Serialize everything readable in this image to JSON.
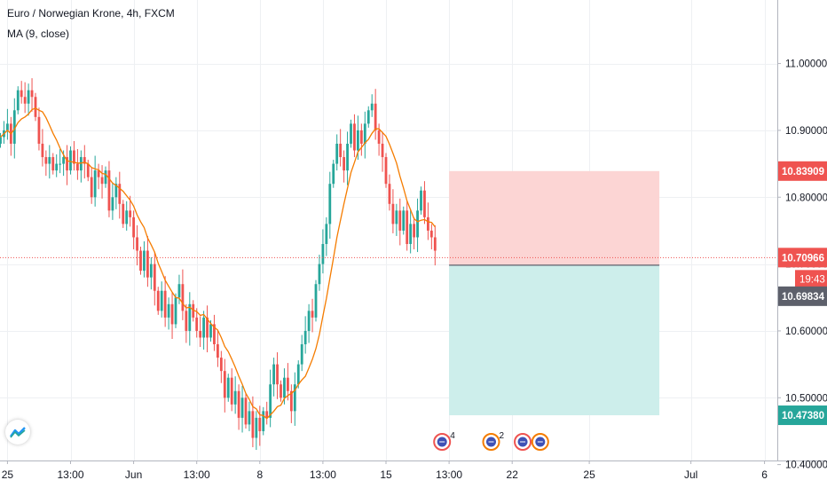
{
  "header": {
    "symbol_line": "Euro / Norwegian Krone, 4h, FXCM",
    "indicator_line": "MA (9, close)"
  },
  "colors": {
    "up": "#26a69a",
    "down": "#ef5350",
    "ma": "#f57c00",
    "stop_zone": "#fcd5d4",
    "target_zone": "#cdeeeb",
    "grid": "#eef0f3",
    "axis_text": "#131722"
  },
  "chart_data": {
    "type": "candlestick",
    "title": "Euro / Norwegian Krone, 4h, FXCM",
    "indicator": "MA (9, close)",
    "ylim": [
      10.365,
      11.095
    ],
    "y_ticks": [
      "11.00000",
      "10.90000",
      "10.80000",
      "10.70000",
      "10.60000",
      "10.50000",
      "10.40000"
    ],
    "x_ticks": [
      {
        "label": "25",
        "bar": 2
      },
      {
        "label": "13:00",
        "bar": 20
      },
      {
        "label": "Jun",
        "bar": 38
      },
      {
        "label": "13:00",
        "bar": 56
      },
      {
        "label": "8",
        "bar": 74
      },
      {
        "label": "13:00",
        "bar": 92
      },
      {
        "label": "15",
        "bar": 110
      },
      {
        "label": "13:00",
        "bar": 128
      },
      {
        "label": "22",
        "bar": 146
      },
      {
        "label": "25",
        "bar": 168
      },
      {
        "label": "Jul",
        "bar": 197
      },
      {
        "label": "6",
        "bar": 218
      }
    ],
    "closes": [
      10.89,
      10.9,
      10.91,
      10.88,
      10.93,
      10.96,
      10.95,
      10.94,
      10.96,
      10.95,
      10.92,
      10.88,
      10.86,
      10.85,
      10.86,
      10.84,
      10.85,
      10.85,
      10.86,
      10.84,
      10.87,
      10.85,
      10.84,
      10.86,
      10.85,
      10.83,
      10.8,
      10.84,
      10.83,
      10.82,
      10.84,
      10.78,
      10.8,
      10.82,
      10.79,
      10.76,
      10.78,
      10.77,
      10.74,
      10.72,
      10.69,
      10.72,
      10.68,
      10.7,
      10.66,
      10.63,
      10.66,
      10.62,
      10.64,
      10.61,
      10.65,
      10.67,
      10.63,
      10.6,
      10.64,
      10.62,
      10.6,
      10.59,
      10.62,
      10.59,
      10.61,
      10.58,
      10.56,
      10.54,
      10.5,
      10.53,
      10.49,
      10.51,
      10.47,
      10.5,
      10.46,
      10.48,
      10.44,
      10.47,
      10.45,
      10.48,
      10.47,
      10.52,
      10.55,
      10.52,
      10.5,
      10.53,
      10.51,
      10.48,
      10.52,
      10.55,
      10.58,
      10.6,
      10.63,
      10.62,
      10.67,
      10.7,
      10.73,
      10.76,
      10.82,
      10.85,
      10.88,
      10.86,
      10.84,
      10.88,
      10.91,
      10.87,
      10.9,
      10.88,
      10.91,
      10.93,
      10.94,
      10.9,
      10.88,
      10.86,
      10.82,
      10.79,
      10.76,
      10.78,
      10.75,
      10.78,
      10.73,
      10.76,
      10.74,
      10.78,
      10.81,
      10.77,
      10.75,
      10.74,
      10.72
    ],
    "last_price": "10.70966",
    "countdown": "19:43",
    "position": {
      "stop_price": "10.83909",
      "entry_price": "10.69834",
      "target_price": "10.47380",
      "stop": 10.83909,
      "entry": 10.69834,
      "target": 10.4738,
      "from_bar": 128,
      "to_bar": 188
    },
    "event_markers": [
      {
        "bar": 126,
        "count": "4",
        "kind": "red"
      },
      {
        "bar": 140,
        "count": "2",
        "kind": "orange"
      },
      {
        "bar": 149,
        "count": "",
        "kind": "red"
      },
      {
        "bar": 154,
        "count": "",
        "kind": "orange"
      }
    ],
    "grid": true
  }
}
